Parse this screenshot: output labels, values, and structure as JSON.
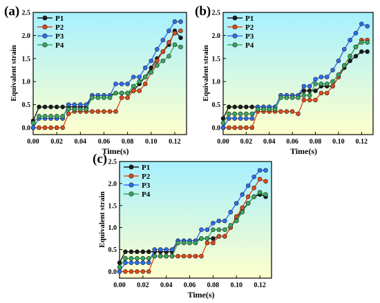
{
  "figure": {
    "background_top": "#a6f0ff",
    "background_bottom": "#ffffcc",
    "series_colors": [
      "#1a1a1a",
      "#e04a1a",
      "#2f6df0",
      "#3aa860"
    ]
  },
  "chart_data": [
    {
      "type": "line",
      "panel_label": "(a)",
      "xlabel": "Time(s)",
      "ylabel": "Equivalent strain",
      "xlim": [
        0.0,
        0.13
      ],
      "ylim": [
        -0.15,
        2.5
      ],
      "xticks": [
        "0.00",
        "0.02",
        "0.04",
        "0.06",
        "0.08",
        "0.10",
        "0.12"
      ],
      "yticks": [
        "0.0",
        "0.5",
        "1.0",
        "1.5",
        "2.0",
        "2.5"
      ],
      "legend": "top-left",
      "series": [
        {
          "name": "P1",
          "x": [
            0.0,
            0.005,
            0.01,
            0.015,
            0.02,
            0.025,
            0.03,
            0.035,
            0.04,
            0.045,
            0.05,
            0.055,
            0.06,
            0.065,
            0.07,
            0.075,
            0.08,
            0.085,
            0.09,
            0.095,
            0.1,
            0.105,
            0.11,
            0.115,
            0.12,
            0.125
          ],
          "y": [
            0.15,
            0.45,
            0.45,
            0.45,
            0.45,
            0.45,
            0.45,
            0.45,
            0.45,
            0.45,
            0.7,
            0.7,
            0.7,
            0.7,
            0.75,
            0.75,
            0.75,
            0.8,
            0.95,
            1.1,
            1.3,
            1.5,
            1.65,
            1.8,
            2.1,
            1.95
          ]
        },
        {
          "name": "P2",
          "x": [
            0.0,
            0.005,
            0.01,
            0.015,
            0.02,
            0.025,
            0.03,
            0.035,
            0.04,
            0.045,
            0.05,
            0.055,
            0.06,
            0.065,
            0.07,
            0.075,
            0.08,
            0.085,
            0.09,
            0.095,
            0.1,
            0.105,
            0.11,
            0.115,
            0.12,
            0.125
          ],
          "y": [
            0.0,
            0.0,
            0.0,
            0.0,
            0.0,
            0.0,
            0.3,
            0.35,
            0.35,
            0.35,
            0.35,
            0.35,
            0.35,
            0.35,
            0.35,
            0.65,
            0.65,
            0.8,
            0.8,
            0.95,
            1.2,
            1.45,
            1.65,
            1.85,
            2.05,
            2.1
          ]
        },
        {
          "name": "P3",
          "x": [
            0.0,
            0.005,
            0.01,
            0.015,
            0.02,
            0.025,
            0.03,
            0.035,
            0.04,
            0.045,
            0.05,
            0.055,
            0.06,
            0.065,
            0.07,
            0.075,
            0.08,
            0.085,
            0.09,
            0.095,
            0.1,
            0.105,
            0.11,
            0.115,
            0.12,
            0.125
          ],
          "y": [
            0.0,
            0.2,
            0.2,
            0.2,
            0.2,
            0.2,
            0.5,
            0.5,
            0.5,
            0.5,
            0.7,
            0.7,
            0.7,
            0.7,
            0.95,
            0.95,
            0.95,
            1.1,
            1.1,
            1.3,
            1.45,
            1.7,
            1.9,
            2.1,
            2.3,
            2.3
          ]
        },
        {
          "name": "P4",
          "x": [
            0.0,
            0.005,
            0.01,
            0.015,
            0.02,
            0.025,
            0.03,
            0.035,
            0.04,
            0.045,
            0.05,
            0.055,
            0.06,
            0.065,
            0.07,
            0.075,
            0.08,
            0.085,
            0.09,
            0.095,
            0.1,
            0.105,
            0.11,
            0.115,
            0.12,
            0.125
          ],
          "y": [
            0.1,
            0.25,
            0.25,
            0.25,
            0.25,
            0.25,
            0.4,
            0.4,
            0.4,
            0.4,
            0.65,
            0.65,
            0.65,
            0.65,
            0.75,
            0.75,
            0.75,
            0.9,
            1.0,
            1.1,
            1.2,
            1.35,
            1.45,
            1.55,
            1.8,
            1.75
          ]
        }
      ]
    },
    {
      "type": "line",
      "panel_label": "(b)",
      "xlabel": "Time(s)",
      "ylabel": "Equivalent strain",
      "xlim": [
        0.0,
        0.13
      ],
      "ylim": [
        -0.15,
        2.5
      ],
      "xticks": [
        "0.00",
        "0.02",
        "0.04",
        "0.06",
        "0.08",
        "0.10",
        "0.12"
      ],
      "yticks": [
        "0.0",
        "0.5",
        "1.0",
        "1.5",
        "2.0",
        "2.5"
      ],
      "legend": "top-left",
      "series": [
        {
          "name": "P1",
          "x": [
            0.0,
            0.005,
            0.01,
            0.015,
            0.02,
            0.025,
            0.03,
            0.035,
            0.04,
            0.045,
            0.05,
            0.055,
            0.06,
            0.065,
            0.07,
            0.075,
            0.08,
            0.085,
            0.09,
            0.095,
            0.1,
            0.105,
            0.11,
            0.115,
            0.12,
            0.125
          ],
          "y": [
            0.2,
            0.45,
            0.45,
            0.45,
            0.45,
            0.45,
            0.45,
            0.45,
            0.45,
            0.45,
            0.7,
            0.7,
            0.7,
            0.7,
            0.8,
            0.8,
            0.8,
            0.9,
            0.9,
            0.9,
            1.1,
            1.3,
            1.45,
            1.55,
            1.65,
            1.65
          ]
        },
        {
          "name": "P2",
          "x": [
            0.0,
            0.005,
            0.01,
            0.015,
            0.02,
            0.025,
            0.03,
            0.035,
            0.04,
            0.045,
            0.05,
            0.055,
            0.06,
            0.065,
            0.07,
            0.075,
            0.08,
            0.085,
            0.09,
            0.095,
            0.1,
            0.105,
            0.11,
            0.115,
            0.12,
            0.125
          ],
          "y": [
            0.0,
            0.0,
            0.0,
            0.0,
            0.0,
            0.0,
            0.35,
            0.35,
            0.35,
            0.35,
            0.35,
            0.35,
            0.35,
            0.3,
            0.6,
            0.6,
            0.6,
            0.75,
            0.75,
            0.9,
            1.1,
            1.35,
            1.55,
            1.75,
            1.9,
            1.9
          ]
        },
        {
          "name": "P3",
          "x": [
            0.0,
            0.005,
            0.01,
            0.015,
            0.02,
            0.025,
            0.03,
            0.035,
            0.04,
            0.045,
            0.05,
            0.055,
            0.06,
            0.065,
            0.07,
            0.075,
            0.08,
            0.085,
            0.09,
            0.095,
            0.1,
            0.105,
            0.11,
            0.115,
            0.12,
            0.125
          ],
          "y": [
            0.0,
            0.2,
            0.2,
            0.2,
            0.2,
            0.2,
            0.45,
            0.45,
            0.45,
            0.45,
            0.7,
            0.7,
            0.7,
            0.7,
            0.9,
            0.9,
            1.05,
            1.1,
            1.1,
            1.25,
            1.45,
            1.7,
            1.9,
            2.05,
            2.25,
            2.2
          ]
        },
        {
          "name": "P4",
          "x": [
            0.0,
            0.005,
            0.01,
            0.015,
            0.02,
            0.025,
            0.03,
            0.035,
            0.04,
            0.045,
            0.05,
            0.055,
            0.06,
            0.065,
            0.07,
            0.075,
            0.08,
            0.085,
            0.09,
            0.095,
            0.1,
            0.105,
            0.11,
            0.115,
            0.12,
            0.125
          ],
          "y": [
            0.1,
            0.3,
            0.3,
            0.3,
            0.3,
            0.3,
            0.4,
            0.4,
            0.4,
            0.4,
            0.65,
            0.65,
            0.65,
            0.65,
            0.7,
            0.7,
            0.95,
            0.95,
            0.95,
            1.0,
            1.15,
            1.35,
            1.55,
            1.75,
            1.85,
            1.85
          ]
        }
      ]
    },
    {
      "type": "line",
      "panel_label": "(c)",
      "xlabel": "Time(s)",
      "ylabel": "Equivalent strain",
      "xlim": [
        0.0,
        0.13
      ],
      "ylim": [
        -0.15,
        2.5
      ],
      "xticks": [
        "0.00",
        "0.02",
        "0.04",
        "0.06",
        "0.08",
        "0.10",
        "0.12"
      ],
      "yticks": [
        "0.0",
        "0.5",
        "1.0",
        "1.5",
        "2.0",
        "2.5"
      ],
      "legend": "top-left",
      "series": [
        {
          "name": "P1",
          "x": [
            0.0,
            0.005,
            0.01,
            0.015,
            0.02,
            0.025,
            0.03,
            0.035,
            0.04,
            0.045,
            0.05,
            0.055,
            0.06,
            0.065,
            0.07,
            0.075,
            0.08,
            0.085,
            0.09,
            0.095,
            0.1,
            0.105,
            0.11,
            0.115,
            0.12,
            0.125
          ],
          "y": [
            0.2,
            0.45,
            0.45,
            0.45,
            0.45,
            0.45,
            0.45,
            0.45,
            0.45,
            0.45,
            0.7,
            0.7,
            0.7,
            0.7,
            0.75,
            0.75,
            0.75,
            0.8,
            0.8,
            1.0,
            1.2,
            1.4,
            1.55,
            1.7,
            1.75,
            1.7
          ]
        },
        {
          "name": "P2",
          "x": [
            0.0,
            0.005,
            0.01,
            0.015,
            0.02,
            0.025,
            0.03,
            0.035,
            0.04,
            0.045,
            0.05,
            0.055,
            0.06,
            0.065,
            0.07,
            0.075,
            0.08,
            0.085,
            0.09,
            0.095,
            0.1,
            0.105,
            0.11,
            0.115,
            0.12,
            0.125
          ],
          "y": [
            0.0,
            0.0,
            0.0,
            0.0,
            0.0,
            0.0,
            0.35,
            0.35,
            0.35,
            0.35,
            0.35,
            0.35,
            0.35,
            0.35,
            0.35,
            0.65,
            0.65,
            0.8,
            0.8,
            1.0,
            1.25,
            1.45,
            1.7,
            1.9,
            2.1,
            2.05
          ]
        },
        {
          "name": "P3",
          "x": [
            0.0,
            0.005,
            0.01,
            0.015,
            0.02,
            0.025,
            0.03,
            0.035,
            0.04,
            0.045,
            0.05,
            0.055,
            0.06,
            0.065,
            0.07,
            0.075,
            0.08,
            0.085,
            0.09,
            0.095,
            0.1,
            0.105,
            0.11,
            0.115,
            0.12,
            0.125
          ],
          "y": [
            0.0,
            0.2,
            0.2,
            0.2,
            0.2,
            0.2,
            0.5,
            0.5,
            0.5,
            0.5,
            0.7,
            0.7,
            0.7,
            0.7,
            0.95,
            0.95,
            1.1,
            1.15,
            1.15,
            1.35,
            1.55,
            1.75,
            1.95,
            2.15,
            2.3,
            2.3
          ]
        },
        {
          "name": "P4",
          "x": [
            0.0,
            0.005,
            0.01,
            0.015,
            0.02,
            0.025,
            0.03,
            0.035,
            0.04,
            0.045,
            0.05,
            0.055,
            0.06,
            0.065,
            0.07,
            0.075,
            0.08,
            0.085,
            0.09,
            0.095,
            0.1,
            0.105,
            0.11,
            0.115,
            0.12,
            0.125
          ],
          "y": [
            0.1,
            0.3,
            0.3,
            0.3,
            0.3,
            0.3,
            0.35,
            0.35,
            0.35,
            0.35,
            0.65,
            0.65,
            0.65,
            0.65,
            0.75,
            0.75,
            0.95,
            0.95,
            0.95,
            1.05,
            1.15,
            1.35,
            1.55,
            1.7,
            1.8,
            1.75
          ]
        }
      ]
    }
  ]
}
